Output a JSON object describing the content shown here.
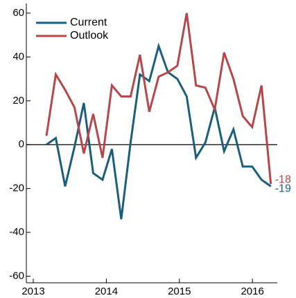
{
  "chart_data": {
    "type": "line",
    "x": [
      2013.18,
      2013.308,
      2013.436,
      2013.564,
      2013.692,
      2013.82,
      2013.948,
      2014.076,
      2014.204,
      2014.332,
      2014.46,
      2014.588,
      2014.716,
      2014.844,
      2014.972,
      2015.1,
      2015.228,
      2015.356,
      2015.484,
      2015.612,
      2015.74,
      2015.868,
      2015.996,
      2016.124,
      2016.252
    ],
    "series": [
      {
        "name": "Current",
        "color": "#1a5e7e",
        "values": [
          0,
          3,
          -19,
          -1,
          19,
          -13,
          -16,
          -2,
          -34,
          1,
          32,
          29,
          45,
          33,
          30,
          22,
          -6,
          1,
          17,
          -3,
          7,
          -10,
          -10,
          -16,
          -19
        ]
      },
      {
        "name": "Outlook",
        "color": "#b5474b",
        "values": [
          4,
          32,
          25,
          17,
          -4,
          14,
          -6,
          27,
          22,
          22,
          41,
          15,
          31,
          33,
          36,
          60,
          27,
          26,
          16,
          42,
          30,
          13,
          8,
          27,
          -18
        ]
      }
    ],
    "xlim": [
      2012.905,
      2016.34
    ],
    "xticks": [
      2013,
      2014,
      2015,
      2016
    ],
    "ylim": [
      -63,
      64.4
    ],
    "yticks": [
      -60,
      -40,
      -20,
      0,
      20,
      40,
      60
    ],
    "legend": "upper left"
  }
}
